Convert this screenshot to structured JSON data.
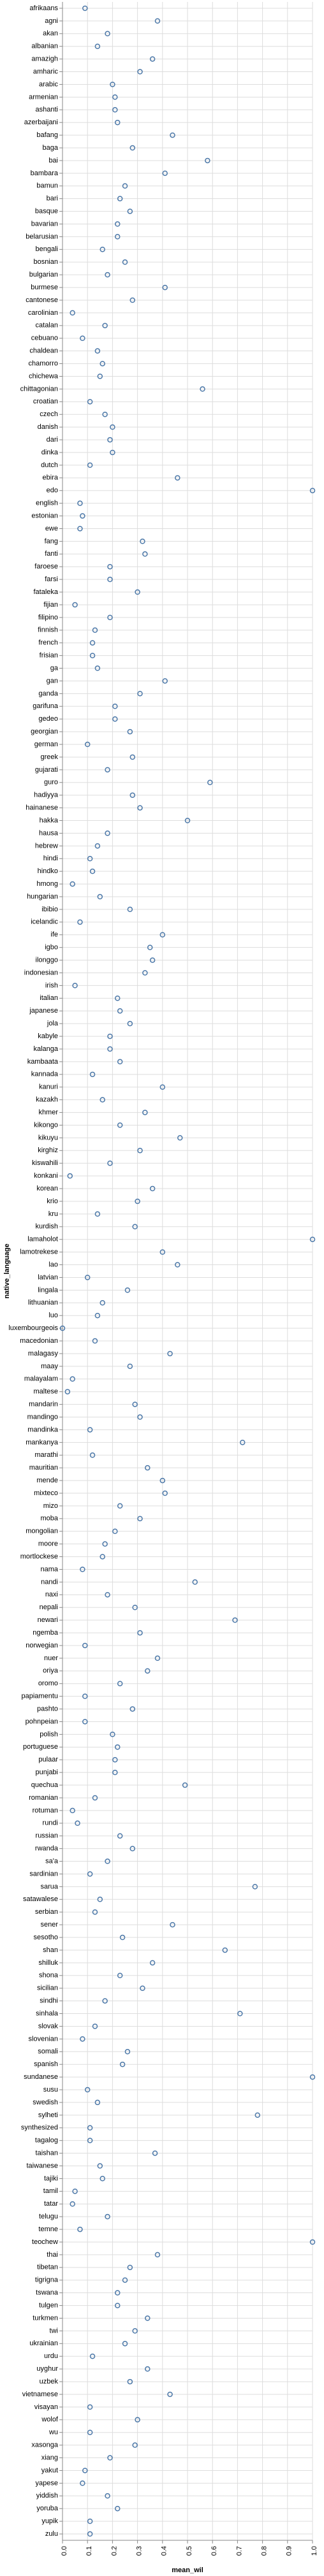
{
  "chart_data": {
    "type": "scatter",
    "xlabel": "mean_wil",
    "ylabel": "native_language",
    "xlim": [
      0,
      1
    ],
    "xticks": [
      "0.0",
      "0.1",
      "0.2",
      "0.3",
      "0.4",
      "0.5",
      "0.6",
      "0.7",
      "0.8",
      "0.9",
      "1.0"
    ],
    "grid": true,
    "point_color": "#4c78a8",
    "categories": [
      "afrikaans",
      "agni",
      "akan",
      "albanian",
      "amazigh",
      "amharic",
      "arabic",
      "armenian",
      "ashanti",
      "azerbaijani",
      "bafang",
      "baga",
      "bai",
      "bambara",
      "bamun",
      "bari",
      "basque",
      "bavarian",
      "belarusian",
      "bengali",
      "bosnian",
      "bulgarian",
      "burmese",
      "cantonese",
      "carolinian",
      "catalan",
      "cebuano",
      "chaldean",
      "chamorro",
      "chichewa",
      "chittagonian",
      "croatian",
      "czech",
      "danish",
      "dari",
      "dinka",
      "dutch",
      "ebira",
      "edo",
      "english",
      "estonian",
      "ewe",
      "fang",
      "fanti",
      "faroese",
      "farsi",
      "fataleka",
      "fijian",
      "filipino",
      "finnish",
      "french",
      "frisian",
      "ga",
      "gan",
      "ganda",
      "garifuna",
      "gedeo",
      "georgian",
      "german",
      "greek",
      "gujarati",
      "guro",
      "hadiyya",
      "hainanese",
      "hakka",
      "hausa",
      "hebrew",
      "hindi",
      "hindko",
      "hmong",
      "hungarian",
      "ibibio",
      "icelandic",
      "ife",
      "igbo",
      "ilonggo",
      "indonesian",
      "irish",
      "italian",
      "japanese",
      "jola",
      "kabyle",
      "kalanga",
      "kambaata",
      "kannada",
      "kanuri",
      "kazakh",
      "khmer",
      "kikongo",
      "kikuyu",
      "kirghiz",
      "kiswahili",
      "konkani",
      "korean",
      "krio",
      "kru",
      "kurdish",
      "lamaholot",
      "lamotrekese",
      "lao",
      "latvian",
      "lingala",
      "lithuanian",
      "luo",
      "luxembourgeois",
      "macedonian",
      "malagasy",
      "maay",
      "malayalam",
      "maltese",
      "mandarin",
      "mandingo",
      "mandinka",
      "mankanya",
      "marathi",
      "mauritian",
      "mende",
      "mixteco",
      "mizo",
      "moba",
      "mongolian",
      "moore",
      "mortlockese",
      "nama",
      "nandi",
      "naxi",
      "nepali",
      "newari",
      "ngemba",
      "norwegian",
      "nuer",
      "oriya",
      "oromo",
      "papiamentu",
      "pashto",
      "pohnpeian",
      "polish",
      "portuguese",
      "pulaar",
      "punjabi",
      "quechua",
      "romanian",
      "rotuman",
      "rundi",
      "russian",
      "rwanda",
      "sa'a",
      "sardinian",
      "sarua",
      "satawalese",
      "serbian",
      "sener",
      "sesotho",
      "shan",
      "shilluk",
      "shona",
      "sicilian",
      "sindhi",
      "sinhala",
      "slovak",
      "slovenian",
      "somali",
      "spanish",
      "sundanese",
      "susu",
      "swedish",
      "sylheti",
      "synthesized",
      "tagalog",
      "taishan",
      "taiwanese",
      "tajiki",
      "tamil",
      "tatar",
      "telugu",
      "temne",
      "teochew",
      "thai",
      "tibetan",
      "tigrigna",
      "tswana",
      "tulgen",
      "turkmen",
      "twi",
      "ukrainian",
      "urdu",
      "uyghur",
      "uzbek",
      "vietnamese",
      "visayan",
      "wolof",
      "wu",
      "xasonga",
      "xiang",
      "yakut",
      "yapese",
      "yiddish",
      "yoruba",
      "yupik",
      "zulu"
    ],
    "series": [
      {
        "values": [
          0.09,
          0.38,
          0.18,
          0.14,
          0.36,
          0.31,
          0.2,
          0.21,
          0.21,
          0.22,
          0.44,
          0.28,
          0.58,
          0.41,
          0.25,
          0.23,
          0.27,
          0.22,
          0.22,
          0.16,
          0.25,
          0.18,
          0.41,
          0.28,
          0.04,
          0.17,
          0.08,
          0.14,
          0.16,
          0.15,
          0.56,
          0.11,
          0.17,
          0.2,
          0.19,
          0.2,
          0.11,
          0.46,
          1.0,
          0.07,
          0.08,
          0.07,
          0.32,
          0.33,
          0.19,
          0.19,
          0.3,
          0.05,
          0.19,
          0.13,
          0.12,
          0.12,
          0.14,
          0.41,
          0.31,
          0.21,
          0.21,
          0.27,
          0.1,
          0.28,
          0.18,
          0.59,
          0.28,
          0.31,
          0.5,
          0.18,
          0.14,
          0.11,
          0.12,
          0.04,
          0.15,
          0.27,
          0.07,
          0.4,
          0.35,
          0.36,
          0.33,
          0.05,
          0.22,
          0.23,
          0.27,
          0.19,
          0.19,
          0.23,
          0.12,
          0.4,
          0.16,
          0.33,
          0.23,
          0.47,
          0.31,
          0.19,
          0.03,
          0.36,
          0.3,
          0.14,
          0.29,
          1.0,
          0.4,
          0.46,
          0.1,
          0.26,
          0.16,
          0.14,
          0.0,
          0.13,
          0.43,
          0.27,
          0.04,
          0.02,
          0.29,
          0.31,
          0.11,
          0.72,
          0.12,
          0.34,
          0.4,
          0.41,
          0.23,
          0.31,
          0.21,
          0.17,
          0.16,
          0.08,
          0.53,
          0.18,
          0.29,
          0.69,
          0.31,
          0.09,
          0.38,
          0.34,
          0.23,
          0.09,
          0.28,
          0.09,
          0.2,
          0.22,
          0.21,
          0.21,
          0.49,
          0.13,
          0.04,
          0.06,
          0.23,
          0.28,
          0.18,
          0.11,
          0.77,
          0.15,
          0.13,
          0.44,
          0.24,
          0.65,
          0.36,
          0.23,
          0.32,
          0.17,
          0.71,
          0.13,
          0.08,
          0.26,
          0.24,
          1.0,
          0.1,
          0.14,
          0.78,
          0.11,
          0.11,
          0.37,
          0.15,
          0.16,
          0.05,
          0.04,
          0.18,
          0.07,
          1.0,
          0.38,
          0.27,
          0.25,
          0.22,
          0.22,
          0.34,
          0.29,
          0.25,
          0.12,
          0.34,
          0.27,
          0.43,
          0.11,
          0.3,
          0.11,
          0.29,
          0.19,
          0.09,
          0.08,
          0.18,
          0.22,
          0.11,
          0.11
        ]
      }
    ]
  }
}
